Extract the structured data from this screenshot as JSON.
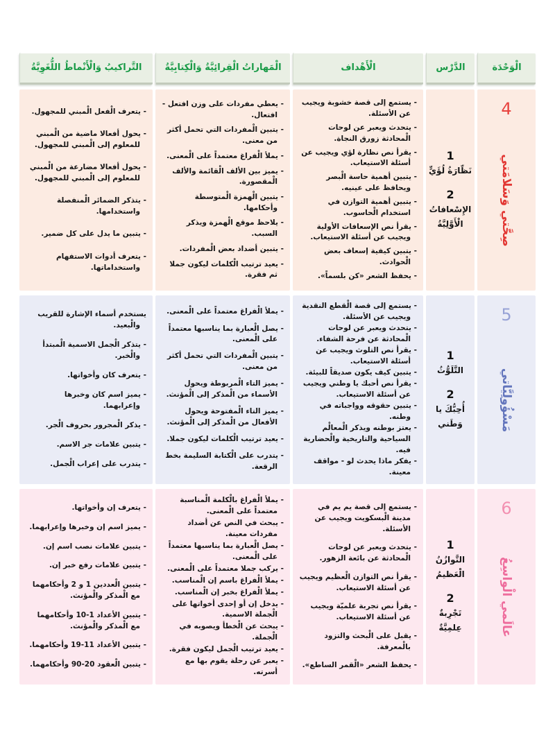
{
  "header": {
    "unit": "الْوَحْدَة",
    "lesson": "الدَّرْس",
    "objectives": "الْأَهْداف",
    "skills": "الْمَهاراتُ الْقِرائِيَّةُ وَالْكِتابِيَّةُ",
    "structures": "التَّراكيبُ وَالْأَنْماطُ اللُّغَوِيَّةُ"
  },
  "colors": {
    "header_bg": "#e9efe4",
    "header_text": "#189a46",
    "unit4_bg": "#fcebe2",
    "unit4_accent": "#e23733",
    "unit5_bg": "#eaecf6",
    "unit5_accent": "#6375bc",
    "unit6_bg": "#fde8ef",
    "unit6_accent": "#ee6d9d",
    "body_text": "#161616"
  },
  "units": [
    {
      "number": "4",
      "title": "صِحَّتي وَسَلامَتي",
      "lessons": [
        {
          "num": "1",
          "title": "نَظّارَةُ لُؤَيٍّ"
        },
        {
          "num": "2",
          "title": "الإِسْعافاتُ الْأَوَّلِيَّةُ"
        }
      ],
      "objectives": [
        "- يستمع إلى قصة خشوبة ويجيب عن الأسئلة.",
        "- يتحدث ويعبر عن لوحات الْمحادثة زورق النجاة.",
        "- يقرأ نص نظارة لؤي ويجيب عن أسئلة الاستيعاب.",
        "- يتبين أهمية حاسة الْبصر ويحافظ على عينيه.",
        "- يتبين أهمية التوازن في استخدام الْحاسوب.",
        "- يقرأ نص الإسعافات الأولية ويجيب عن أسئلة الاستيعاب.",
        "- يتبين كيفية إسعاف بعض الْحوادث.",
        "- يحفظ الشعر «كن بلسماً»."
      ],
      "skills": [
        "- يعطي مفردات على وزن افتعل - افتعال.",
        "- يتبين الْمفردات التي تحمل أكثر من معنى.",
        "- يملأ الْفراغ معتمداً على الْمعنى.",
        "- يميز بين الألف الْقائمة والألف الْمقصورة.",
        "- يتبين الْهمزة الْمتوسطة وأحكامها.",
        "- يلاحظ موقع الْهمزة ويذكر السبب.",
        "- يتبين أضداد بعض الْمفردات.",
        "- يعيد ترتيب الْكلمات ليكون جملا ثم فقرة."
      ],
      "structures": [
        "- يتعرف الْفعل الْمبني للمجهول.",
        "- يحول أفعالا ماضية من الْمبني للمعلوم إلى الْمبني للمجهول.",
        "- يحول أفعالا مضارعة من الْمبني للمعلوم إلى الْمبني للمجهول.",
        "- يتذكر الضمائر الْمنفصلة واستخدامها.",
        "- يتبين ما يدل على كل ضمير.",
        "- يتعرف أدوات الاستفهام واستخداماتها."
      ]
    },
    {
      "number": "5",
      "title": "مَسْؤُولِيَّاتي",
      "lessons": [
        {
          "num": "1",
          "title": "التَّلَوُّثُ"
        },
        {
          "num": "2",
          "title": "أُحِبُّكَ يا وَطَني"
        }
      ],
      "objectives": [
        "- يستمع إلى قصة الْقطع النقدية ويجيب عن الأسئلة.",
        "- يتحدث ويعبر عن لوحات الْمحادثة عن فرحة الشفاء.",
        "- يقرأ نص التلوث ويجيب عن أسئلة الاستيعاب.",
        "- يتبين كيف يكون صديقاً للبيئة.",
        "- يقرأ نص أحبك يا وطني ويجيب عن أسئلة الاستيعاب.",
        "- يتبين حقوقه وواجباته في وطنه.",
        "- يعتز بوطنه ويذكر الْمعالْم السياحية والتاريخية والْحضارية فيه.",
        "- يفكر ماذا يحدث لو - مواقف معينة."
      ],
      "skills": [
        "- يملأ الْفراغ معتمداً على الْمعنى.",
        "- يصل الْعبارة بما يناسبها معتمداً على الْمعنى.",
        "- يتبين الْمفردات التي تحمل أكثر من معنى.",
        "- يميز التاء الْمربوطة ويحول الأسماء من الْمذكر إلى الْمؤنث.",
        "- يميز التاء الْمفتوحة ويحول الأفعال من الْمذكر إلى الْمؤنث.",
        "- يعيد ترتيب الْكلمات ليكون جملا.",
        "- يتدرب على الْكتابة السليمة بخط الرقعة."
      ],
      "structures": [
        "يستخدم أسماء الإشارة للقريب والْبعيد.",
        "- يتذكر الْجمل الاسمية الْمبتدأ والْخبر.",
        "- يتعرف كان وأخواتها.",
        "- يميز اسم كان وخبرها وإعرابهما.",
        "- يذكر الْمجرور بحروف الْجر.",
        "- يتبين علامات جر الاسم.",
        "- يتدرب على إعراب الْجمل."
      ]
    },
    {
      "number": "6",
      "title": "عالَمي الْواسِعُ",
      "lessons": [
        {
          "num": "1",
          "title": "التَّوازُنُ الْعَظيمُ"
        },
        {
          "num": "2",
          "title": "تَجْرِبةٌ عِلمِيَّةٌ"
        }
      ],
      "objectives": [
        "- يستمع إلى قصة يم يم في مدينة الْبسكويت ويجيب عن الأسئلة.",
        "- يتحدث ويعبر عن لوحات الْمحادثة عن بائعة الزهور.",
        "- يقرأ نص التوازن الْعظيم ويجيب عن أسئلة الاستيعاب.",
        "- يقرأ نص تجربة علميّة ويجيب عن أسئلة الاستيعاب.",
        "- يقبل على الْبحث والتزود بالْمعرفة.",
        "- يحفظ الشعر «الْقمر الساطع»."
      ],
      "skills": [
        "- يملأ الْفراغ بالْكلمة الْمناسبة معتمداً على الْمعنى.",
        "- يبحث في النص عن أضداد مفردات معينة.",
        "- يصل الْعبارة بما يناسبها معتمداً على الْمعنى.",
        "- يركب جملا معتمداً على الْمعنى.",
        "- يملأ الْفراغ باسم إن الْمناسب.",
        "- يملأ الْفراغ بخبر إن الْمناسب.",
        "- يدخل إن أو إحدى أخواتها على الْجملة الاسمية.",
        "- يبحث عن الْخطأ ويصوبه في الْجملة.",
        "- يعيد ترتيب الْجمل ليكون فقرة.",
        "- يعبر عن رحلة يقوم بها مع أسرته."
      ],
      "structures": [
        "- يتعرف إن وأخواتها.",
        "- يميز اسم إن وخبرها وإعرابهما.",
        "- يتبين علامات نصب اسم إن.",
        "- يتبين علامات رفع خبر إن.",
        "- يتبين الْعددين 1 و 2 وأحكامهما مع الْمذكر والْمؤنث.",
        "- يتبين الأعداد 1-10 وأحكامهما مع الْمذكر والْمؤنث.",
        "- يتبين الأعداد 11-19 وأحكامهما.",
        "- يتبين الْعقود 20-90 وأحكامهما."
      ]
    }
  ]
}
